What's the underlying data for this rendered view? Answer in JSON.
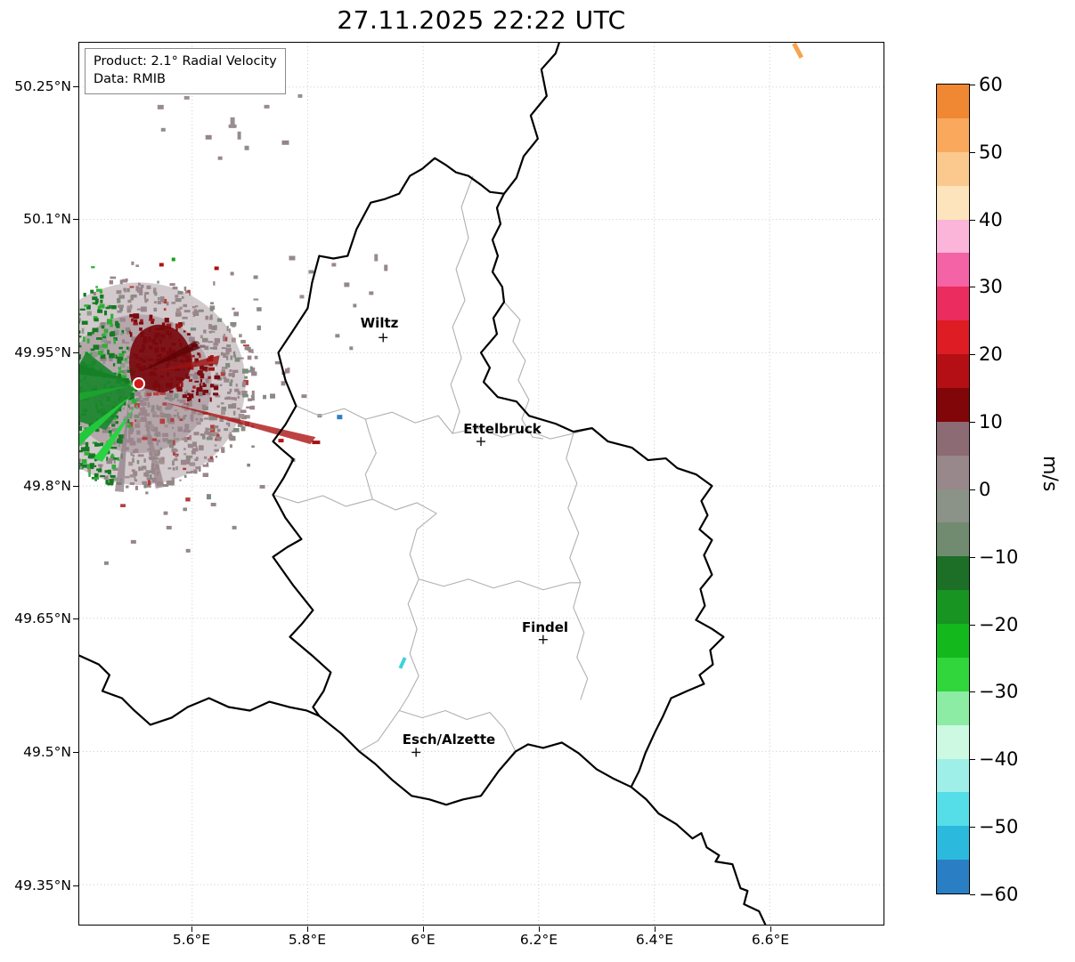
{
  "chart_data": {
    "type": "heatmap",
    "title": "27.11.2025 22:22 UTC",
    "annotations": {
      "product": "Product: 2.1° Radial Velocity",
      "data_source": "Data: RMIB"
    },
    "x_axis": {
      "tick_labels": [
        "5.6°E",
        "5.8°E",
        "6°E",
        "6.2°E",
        "6.4°E",
        "6.6°E"
      ],
      "lon_range_est": [
        5.41,
        6.8
      ]
    },
    "y_axis": {
      "tick_labels": [
        "50.25°N",
        "50.1°N",
        "49.95°N",
        "49.8°N",
        "49.65°N",
        "49.5°N",
        "49.35°N"
      ],
      "lat_range_est": [
        49.31,
        50.3
      ]
    },
    "grid": "dotted",
    "colorbar": {
      "label": "m/s",
      "range": [
        -60,
        60
      ],
      "tick_step": 10,
      "tick_labels": [
        "60",
        "50",
        "40",
        "30",
        "20",
        "10",
        "0",
        "−10",
        "−20",
        "−30",
        "−40",
        "−50",
        "−60"
      ],
      "segment_colors_top_to_bottom": [
        "#ef8733",
        "#f9a85c",
        "#fbc88e",
        "#fde4bd",
        "#fbb5d9",
        "#f463a5",
        "#ea2d5e",
        "#dd1c24",
        "#b30f14",
        "#800609",
        "#8c6b74",
        "#98878b",
        "#8b9287",
        "#708b70",
        "#1d6e26",
        "#179422",
        "#13b81c",
        "#31d53c",
        "#8deca4",
        "#cdf8e2",
        "#9fefe9",
        "#55dde8",
        "#2bbade",
        "#2a7fc4"
      ]
    },
    "cities": [
      {
        "name": "Wiltz",
        "lat_est": 49.97,
        "lon_est": 5.93
      },
      {
        "name": "Ettelbruck",
        "lat_est": 49.85,
        "lon_est": 6.1
      },
      {
        "name": "Findel",
        "lat_est": 49.63,
        "lon_est": 6.21
      },
      {
        "name": "Esch/Alzette",
        "lat_est": 49.5,
        "lon_est": 5.99
      }
    ],
    "radar_observation": {
      "description": "Doppler radial-velocity field centred on a radar site just west of the Luxembourg border: inbound velocities (green, around −5 to −30 m/s) west/south-west of the site, outbound velocities (dark red, around +10 to +20 m/s) north-east of the site, near-zero grey-mauve returns elsewhere, with scattered clutter echoes to the north and east, one small blue pixel east of the site, a cyan echo near Esch and an orange echo streak at the top right of the map",
      "radar_site_marker": "red dot with white rim",
      "approx_site_position": {
        "lat_est": 49.91,
        "lon_est": 5.51
      }
    }
  }
}
